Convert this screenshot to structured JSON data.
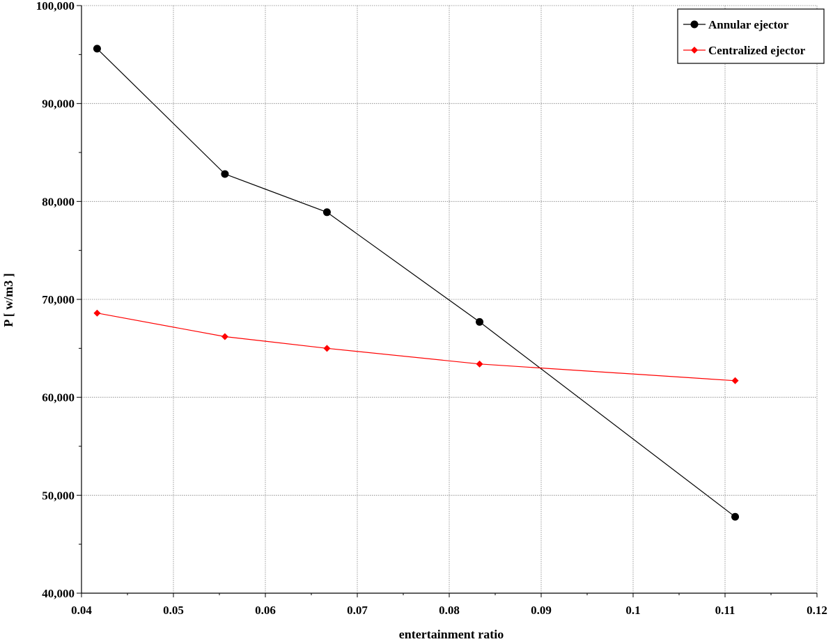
{
  "chart_data": {
    "type": "line",
    "title": "",
    "xlabel": "entertainment ratio",
    "ylabel": "P [ w/m3 ]",
    "xlim": [
      0.04,
      0.12
    ],
    "ylim": [
      40000,
      100000
    ],
    "x_ticks": [
      0.04,
      0.05,
      0.06,
      0.07,
      0.08,
      0.09,
      0.1,
      0.11,
      0.12
    ],
    "x_tick_labels": [
      "0.04",
      "0.05",
      "0.06",
      "0.07",
      "0.08",
      "0.09",
      "0.1",
      "0.11",
      "0.12"
    ],
    "y_ticks": [
      40000,
      50000,
      60000,
      70000,
      80000,
      90000,
      100000
    ],
    "y_tick_labels": [
      "40,000",
      "50,000",
      "60,000",
      "70,000",
      "80,000",
      "90,000",
      "100,000"
    ],
    "grid": true,
    "legend_position": "top-right",
    "series": [
      {
        "name": "Annular ejector",
        "color": "#000000",
        "marker": "circle",
        "x": [
          0.0417,
          0.0556,
          0.0667,
          0.0833,
          0.1111
        ],
        "y": [
          95600,
          82800,
          78900,
          67700,
          47800
        ]
      },
      {
        "name": "Centralized ejector",
        "color": "#ff0000",
        "marker": "diamond",
        "x": [
          0.0417,
          0.0556,
          0.0667,
          0.0833,
          0.1111
        ],
        "y": [
          68600,
          66200,
          65000,
          63400,
          61700
        ]
      }
    ]
  }
}
